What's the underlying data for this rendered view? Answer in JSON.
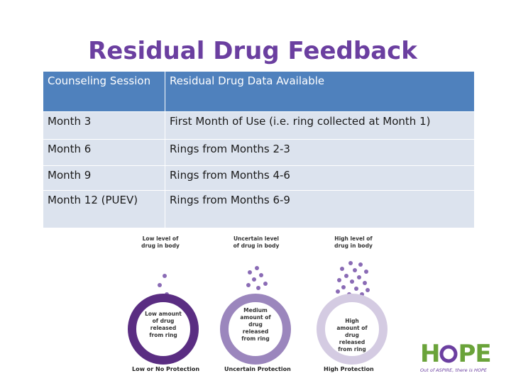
{
  "title": "Residual Drug Feedback",
  "table": {
    "headers": [
      "Counseling Session",
      "Residual Drug Data Available"
    ],
    "rows": [
      [
        "Month 3",
        "First Month of Use (i.e. ring collected at Month 1)"
      ],
      [
        "Month 6",
        "Rings from Months 2-3"
      ],
      [
        "Month 9",
        "Rings from Months 4-6"
      ],
      [
        "Month 12 (PUEV)",
        "Rings from Months 6-9"
      ]
    ]
  },
  "diagram": {
    "panels": [
      {
        "level_label": [
          "Low level of",
          "drug in body"
        ],
        "ring_label": [
          "Low amount",
          "of drug",
          "released",
          "from ring"
        ],
        "protection": "Low or No Protection",
        "ring_color": "#5a2d82",
        "dots": 3
      },
      {
        "level_label": [
          "Uncertain level",
          "of drug in body"
        ],
        "ring_label": [
          "Medium",
          "amount of",
          "drug",
          "released",
          "from ring"
        ],
        "protection": "Uncertain Protection",
        "ring_color": "#9b86bd",
        "dots": 7
      },
      {
        "level_label": [
          "High level of",
          "drug in body"
        ],
        "ring_label": [
          "High",
          "amount of",
          "drug",
          "released",
          "from ring"
        ],
        "protection": "High Protection",
        "ring_color": "#d4cbe2",
        "dots": 16
      }
    ]
  },
  "logo": {
    "word_h": "H",
    "word_pe": "PE",
    "tagline": "Out of ASPIRE, there is HOPE",
    "green": "#6aa33a",
    "purple": "#6b3fa0"
  }
}
